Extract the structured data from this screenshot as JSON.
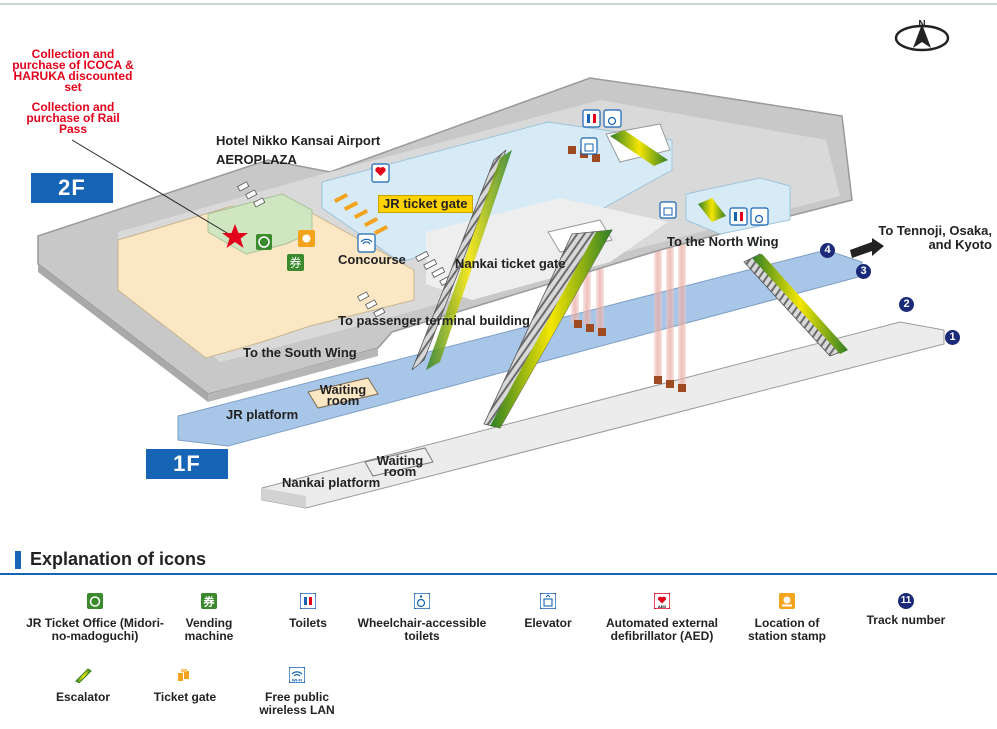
{
  "floors": {
    "upper": "2F",
    "lower": "1F"
  },
  "annotations": {
    "icoca_note": "Collection and purchase of ICOCA & HARUKA discounted set",
    "railpass_note": "Collection and purchase of Rail Pass",
    "hotel": "Hotel Nikko Kansai Airport",
    "aeroplaza": "AEROPLAZA",
    "jr_ticket_gate": "JR ticket gate",
    "concourse": "Concourse",
    "nankai_ticket_gate": "Nankai ticket gate",
    "north_wing": "To the North Wing",
    "to_tennoji": "To Tennoji, Osaka, and Kyoto",
    "to_terminal": "To passenger terminal building",
    "south_wing": "To the South Wing",
    "waiting_room_jr": "Waiting room",
    "waiting_room_nankai": "Waiting room",
    "jr_platform": "JR platform",
    "nankai_platform": "Nankai platform"
  },
  "tracks": [
    "1",
    "2",
    "3",
    "4"
  ],
  "legend": {
    "title": "Explanation of icons",
    "items": [
      {
        "label": "JR Ticket Office (Midori-no-madoguchi)",
        "icon": "jr-ticket-office-icon"
      },
      {
        "label": "Vending machine",
        "icon": "vending-machine-icon"
      },
      {
        "label": "Toilets",
        "icon": "toilets-icon"
      },
      {
        "label": "Wheelchair-accessible toilets",
        "icon": "wheelchair-toilet-icon"
      },
      {
        "label": "Elevator",
        "icon": "elevator-icon"
      },
      {
        "label": "Automated external defibrillator (AED)",
        "icon": "aed-icon"
      },
      {
        "label": "Location of station stamp",
        "icon": "station-stamp-icon"
      },
      {
        "label": "Track number",
        "icon": "track-number-icon",
        "sample": "11"
      },
      {
        "label": "Escalator",
        "icon": "escalator-icon"
      },
      {
        "label": "Ticket gate",
        "icon": "ticket-gate-icon"
      },
      {
        "label": "Free public wireless LAN",
        "icon": "wifi-icon"
      }
    ]
  },
  "icon_glyphs": {
    "vending": "券",
    "aed_text": "AED",
    "wifi_text": "Wi-Fi",
    "compass": "N"
  },
  "colors": {
    "concourse_gray": "#c8c8c8",
    "concourse_edge": "#9a9a9a",
    "gate_area": "#d6ebf6",
    "shop_beige": "#fbe7c4",
    "jr_green": "#cfe6c0",
    "platform_blue": "#a8c7e8",
    "platform_gray": "#ececec",
    "escalator_green": "#3b8b2e",
    "escalator_yellow": "#f5e600",
    "gate_orange": "#f4a31c",
    "elevator_brown": "#a04a22",
    "brand_blue": "#1664b5",
    "marker_red": "#e3001b"
  }
}
